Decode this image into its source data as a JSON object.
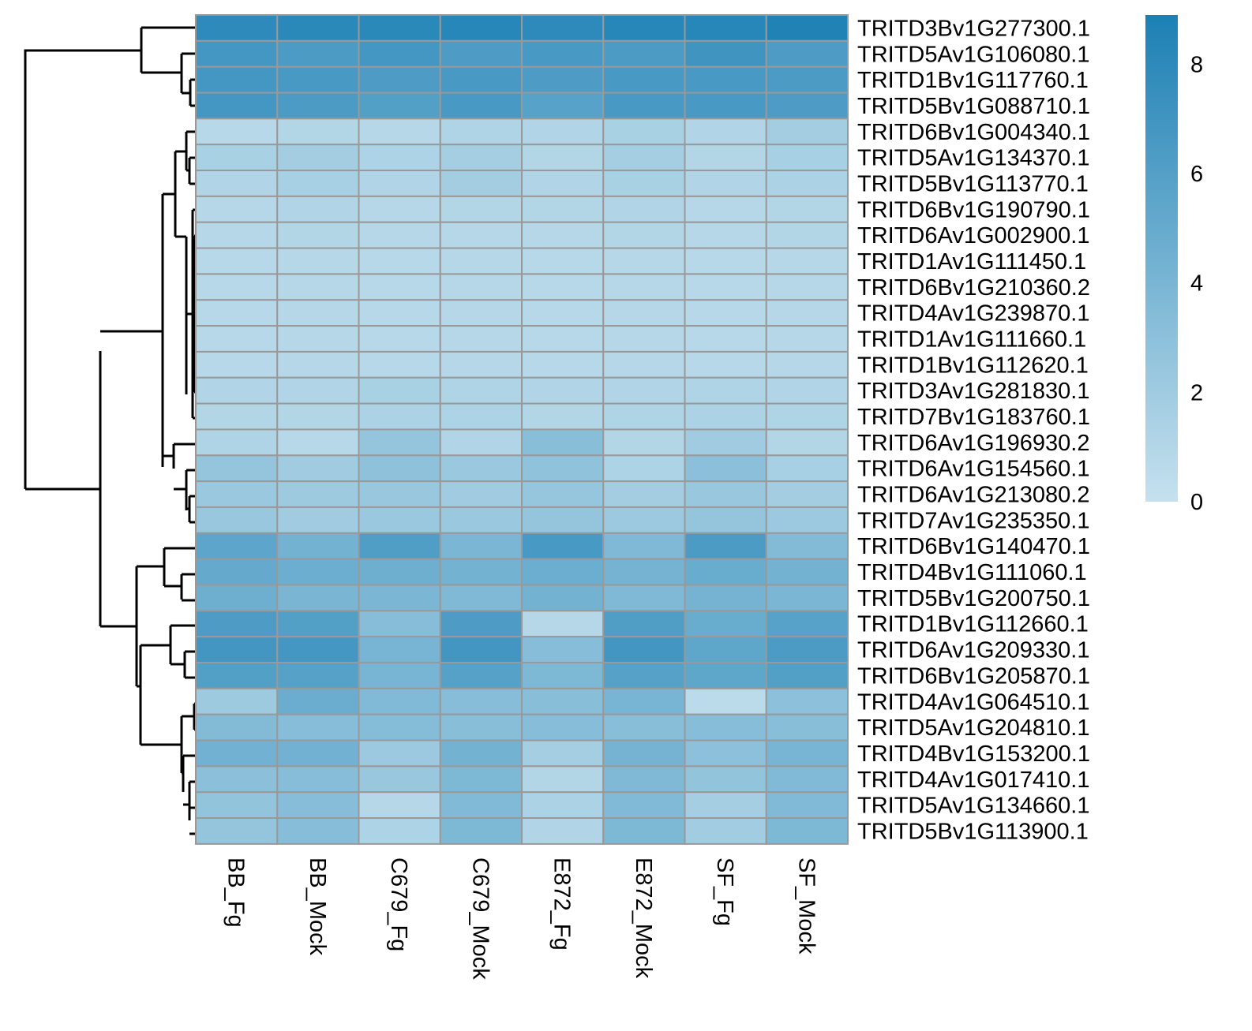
{
  "chart_data": {
    "type": "heatmap",
    "columns": [
      "BB_Fg",
      "BB_Mock",
      "C679_Fg",
      "C679_Mock",
      "E872_Fg",
      "E872_Mock",
      "SF_Fg",
      "SF_Mock"
    ],
    "rows": [
      "TRITD3Bv1G277300.1",
      "TRITD5Av1G106080.1",
      "TRITD1Bv1G117760.1",
      "TRITD5Bv1G088710.1",
      "TRITD6Bv1G004340.1",
      "TRITD5Av1G134370.1",
      "TRITD5Bv1G113770.1",
      "TRITD6Bv1G190790.1",
      "TRITD6Av1G002900.1",
      "TRITD1Av1G111450.1",
      "TRITD6Bv1G210360.2",
      "TRITD4Av1G239870.1",
      "TRITD1Av1G111660.1",
      "TRITD1Bv1G112620.1",
      "TRITD3Av1G281830.1",
      "TRITD7Bv1G183760.1",
      "TRITD6Av1G196930.2",
      "TRITD6Av1G154560.1",
      "TRITD6Av1G213080.2",
      "TRITD7Av1G235350.1",
      "TRITD6Bv1G140470.1",
      "TRITD4Bv1G111060.1",
      "TRITD5Bv1G200750.1",
      "TRITD1Bv1G112660.1",
      "TRITD6Av1G209330.1",
      "TRITD6Bv1G205870.1",
      "TRITD4Av1G064510.1",
      "TRITD5Av1G204810.1",
      "TRITD4Bv1G153200.1",
      "TRITD4Av1G017410.1",
      "TRITD5Av1G134660.1",
      "TRITD5Bv1G113900.1"
    ],
    "values": [
      [
        8.0,
        8.1,
        8.1,
        8.3,
        8.0,
        8.3,
        8.3,
        8.7
      ],
      [
        6.8,
        6.4,
        6.8,
        6.3,
        6.6,
        6.4,
        7.0,
        6.3
      ],
      [
        6.8,
        6.6,
        6.3,
        6.6,
        6.3,
        6.6,
        6.6,
        6.4
      ],
      [
        6.8,
        6.4,
        6.0,
        6.6,
        5.8,
        6.6,
        6.6,
        6.3
      ],
      [
        0.8,
        1.0,
        0.9,
        1.2,
        1.1,
        1.5,
        1.1,
        1.8
      ],
      [
        1.5,
        1.8,
        1.3,
        1.7,
        1.0,
        1.7,
        1.0,
        1.6
      ],
      [
        1.1,
        1.6,
        1.1,
        1.8,
        1.1,
        1.5,
        1.1,
        1.4
      ],
      [
        0.9,
        1.1,
        0.9,
        1.0,
        1.0,
        1.1,
        0.9,
        1.0
      ],
      [
        0.9,
        1.0,
        0.9,
        0.9,
        0.9,
        1.0,
        0.9,
        1.0
      ],
      [
        0.8,
        0.9,
        0.8,
        0.9,
        0.8,
        0.9,
        0.8,
        0.9
      ],
      [
        0.8,
        0.9,
        0.8,
        0.9,
        0.8,
        0.9,
        0.8,
        0.9
      ],
      [
        0.8,
        0.9,
        0.8,
        0.9,
        0.8,
        0.9,
        0.8,
        0.9
      ],
      [
        0.8,
        0.9,
        0.8,
        0.9,
        0.8,
        0.9,
        0.8,
        0.9
      ],
      [
        0.8,
        0.9,
        0.8,
        0.9,
        0.8,
        0.9,
        0.8,
        0.9
      ],
      [
        1.1,
        1.1,
        1.5,
        1.2,
        1.1,
        1.1,
        1.2,
        1.1
      ],
      [
        1.0,
        1.0,
        1.4,
        1.3,
        1.0,
        1.2,
        1.4,
        1.2
      ],
      [
        1.2,
        0.8,
        2.6,
        1.1,
        3.2,
        1.0,
        2.0,
        1.0
      ],
      [
        2.6,
        2.0,
        2.9,
        2.3,
        2.8,
        1.3,
        3.1,
        1.6
      ],
      [
        2.3,
        2.1,
        2.4,
        2.0,
        2.5,
        1.8,
        2.4,
        1.8
      ],
      [
        2.4,
        2.0,
        2.3,
        2.3,
        2.6,
        2.2,
        2.6,
        2.2
      ],
      [
        5.5,
        4.3,
        6.2,
        3.9,
        6.6,
        3.7,
        6.4,
        3.5
      ],
      [
        5.1,
        4.7,
        4.6,
        4.3,
        4.7,
        4.2,
        4.9,
        4.3
      ],
      [
        4.6,
        4.0,
        3.9,
        3.7,
        4.3,
        3.7,
        4.2,
        3.9
      ],
      [
        6.3,
        6.0,
        3.3,
        6.3,
        0.9,
        6.2,
        4.9,
        5.8
      ],
      [
        6.9,
        6.8,
        4.1,
        6.9,
        3.3,
        6.9,
        5.4,
        6.4
      ],
      [
        6.0,
        5.9,
        4.1,
        5.9,
        3.8,
        5.9,
        5.4,
        6.0
      ],
      [
        2.1,
        4.8,
        3.6,
        3.3,
        3.2,
        4.1,
        0.6,
        3.0
      ],
      [
        3.5,
        3.3,
        3.4,
        3.2,
        3.3,
        3.2,
        3.3,
        3.2
      ],
      [
        4.4,
        4.4,
        2.2,
        4.3,
        1.7,
        4.2,
        3.0,
        4.1
      ],
      [
        3.1,
        3.3,
        2.4,
        3.8,
        1.0,
        3.7,
        2.7,
        3.6
      ],
      [
        2.7,
        3.3,
        0.9,
        3.6,
        1.4,
        3.6,
        1.7,
        3.6
      ],
      [
        2.6,
        3.3,
        1.3,
        3.8,
        1.1,
        3.8,
        1.9,
        3.8
      ]
    ],
    "color_scale": {
      "min": 0,
      "max": 8.9,
      "low_color": "#c6e1ee",
      "high_color": "#1c80b4"
    },
    "legend_ticks": [
      0,
      2,
      4,
      6,
      8
    ],
    "cell_border_color": "#999999",
    "row_dendrogram": true,
    "title": "",
    "xlabel": "",
    "ylabel": ""
  }
}
